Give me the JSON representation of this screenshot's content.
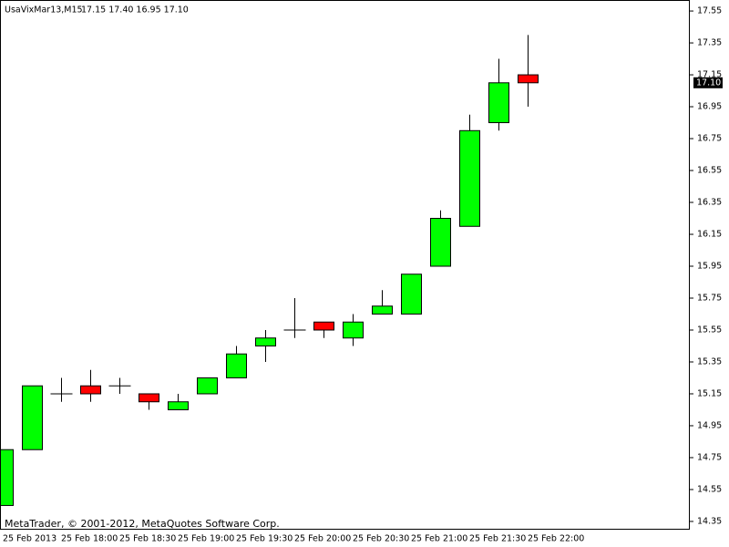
{
  "chart_data": {
    "type": "candlestick",
    "title": "UsaVixMar13,M15",
    "subtitle": "17.15 17.40 16.95 17.10",
    "footer": "MetaTrader, © 2001-2012, MetaQuotes Software Corp.",
    "categories": [
      "25 Feb 2013",
      null,
      "25 Feb 18:00",
      null,
      "25 Feb 18:30",
      null,
      "25 Feb 19:00",
      null,
      "25 Feb 19:30",
      null,
      "25 Feb 20:00",
      null,
      "25 Feb 20:30",
      null,
      "25 Feb 21:00",
      null,
      "25 Feb 21:30",
      null,
      "25 Feb 22:00"
    ],
    "open": [
      14.45,
      14.8,
      15.15,
      15.2,
      15.2,
      15.15,
      15.05,
      15.15,
      15.25,
      15.45,
      15.55,
      15.6,
      15.5,
      15.65,
      15.65,
      15.95,
      16.2,
      16.85,
      17.15
    ],
    "high": [
      14.8,
      15.2,
      15.25,
      15.3,
      15.25,
      15.15,
      15.15,
      15.25,
      15.45,
      15.55,
      15.75,
      15.6,
      15.65,
      15.8,
      15.9,
      16.3,
      16.9,
      17.25,
      17.4
    ],
    "low": [
      14.45,
      14.8,
      15.1,
      15.1,
      15.15,
      15.05,
      15.05,
      15.15,
      15.25,
      15.35,
      15.5,
      15.5,
      15.45,
      15.65,
      15.65,
      15.95,
      16.2,
      16.8,
      16.95
    ],
    "close": [
      14.8,
      15.2,
      15.15,
      15.15,
      15.2,
      15.1,
      15.1,
      15.25,
      15.4,
      15.5,
      15.55,
      15.55,
      15.6,
      15.7,
      15.9,
      16.25,
      16.8,
      17.1,
      17.1
    ],
    "up_color": "#00ff00",
    "down_color": "#ff0000",
    "ylim": [
      14.304,
      17.619
    ],
    "yticks": [
      14.35,
      14.55,
      14.75,
      14.95,
      15.15,
      15.35,
      15.55,
      15.75,
      15.95,
      16.15,
      16.35,
      16.55,
      16.75,
      16.95,
      17.15,
      17.35,
      17.55
    ],
    "last_price": {
      "value": 17.1,
      "label": "17.10"
    }
  }
}
